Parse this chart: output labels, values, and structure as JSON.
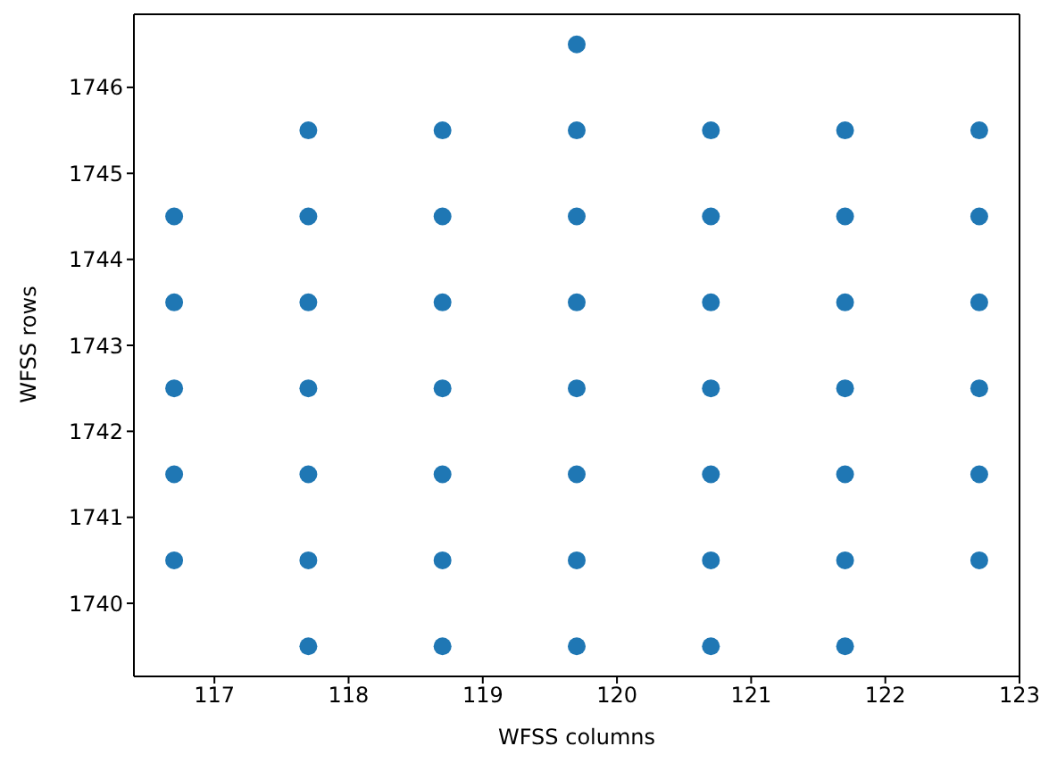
{
  "chart_data": {
    "type": "scatter",
    "xlabel": "WFSS columns",
    "ylabel": "WFSS rows",
    "series": [
      {
        "color": "#1f77b4",
        "x": [
          116.7,
          116.7,
          116.7,
          116.7,
          116.7,
          117.7,
          117.7,
          117.7,
          117.7,
          117.7,
          117.7,
          117.7,
          118.7,
          118.7,
          118.7,
          118.7,
          118.7,
          118.7,
          118.7,
          119.7,
          119.7,
          119.7,
          119.7,
          119.7,
          119.7,
          119.7,
          119.7,
          120.7,
          120.7,
          120.7,
          120.7,
          120.7,
          120.7,
          120.7,
          121.7,
          121.7,
          121.7,
          121.7,
          121.7,
          121.7,
          121.7,
          122.7,
          122.7,
          122.7,
          122.7,
          122.7,
          122.7
        ],
        "values": [
          1740.5,
          1741.5,
          1742.5,
          1743.5,
          1744.5,
          1739.5,
          1740.5,
          1741.5,
          1742.5,
          1743.5,
          1744.5,
          1745.5,
          1739.5,
          1740.5,
          1741.5,
          1742.5,
          1743.5,
          1744.5,
          1745.5,
          1739.5,
          1740.5,
          1741.5,
          1742.5,
          1743.5,
          1744.5,
          1745.5,
          1746.5,
          1739.5,
          1740.5,
          1741.5,
          1742.5,
          1743.5,
          1744.5,
          1745.5,
          1739.5,
          1740.5,
          1741.5,
          1742.5,
          1743.5,
          1744.5,
          1745.5,
          1740.5,
          1741.5,
          1742.5,
          1743.5,
          1744.5,
          1745.5
        ]
      }
    ],
    "xlim": [
      116.4,
      123.0
    ],
    "xticks": [
      117,
      118,
      119,
      120,
      121,
      122,
      123
    ],
    "ylim": [
      1739.15,
      1746.85
    ],
    "yticks": [
      1740,
      1741,
      1742,
      1743,
      1744,
      1745,
      1746
    ],
    "marker": "circle"
  }
}
